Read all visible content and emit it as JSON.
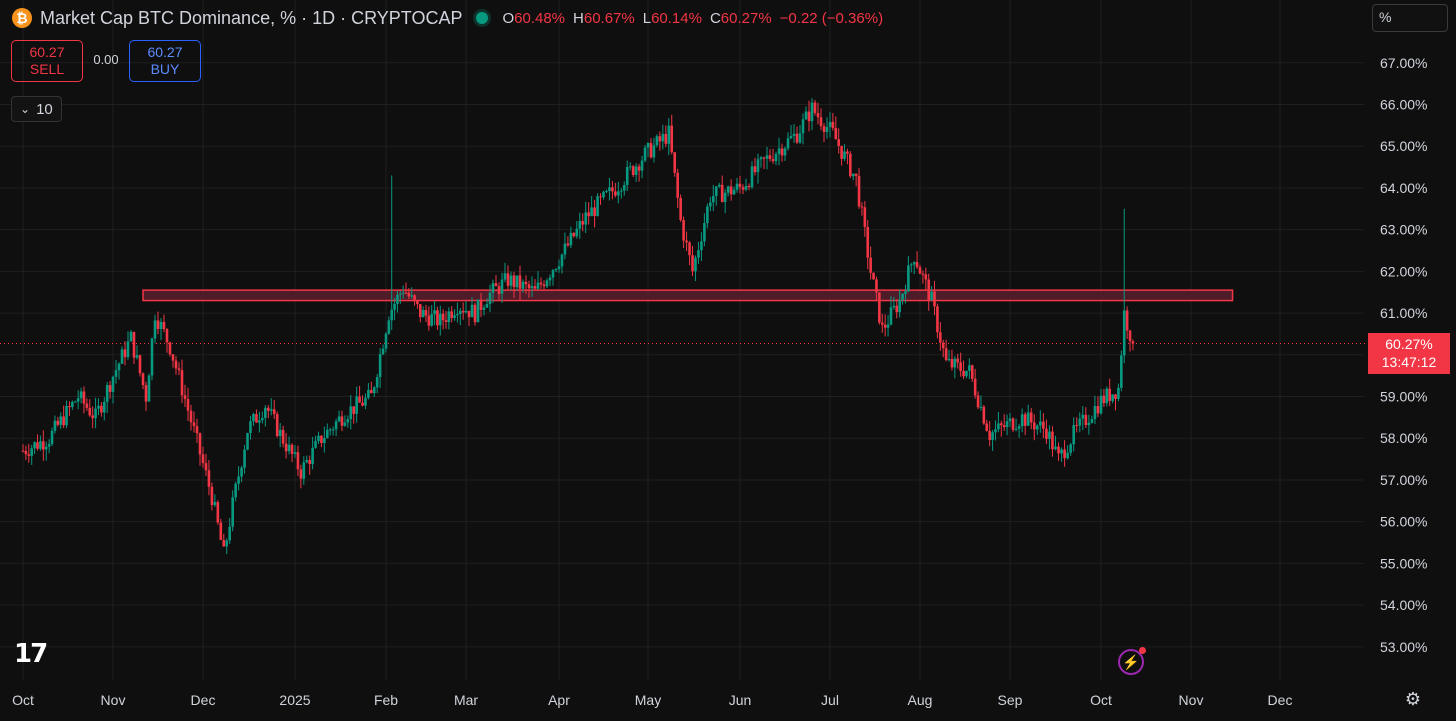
{
  "legend": {
    "coin_symbol": "₿",
    "title": "Market Cap BTC Dominance, % · 1D · CRYPTOCAP",
    "ohlc": [
      {
        "k": "O",
        "v": "60.48%"
      },
      {
        "k": "H",
        "v": "60.67%"
      },
      {
        "k": "L",
        "v": "60.14%"
      },
      {
        "k": "C",
        "v": "60.27%"
      },
      {
        "k": "",
        "v": "−0.22 (−0.36%)"
      }
    ]
  },
  "trade": {
    "sell_price": "60.27",
    "sell_label": "SELL",
    "spread": "0.00",
    "buy_price": "60.27",
    "buy_label": "BUY"
  },
  "indicators": {
    "collapse_icon": "chevron-down-icon",
    "count": "10"
  },
  "scale": {
    "unit": "%"
  },
  "last_price": {
    "value": "60.27%",
    "countdown": "13:47:12"
  },
  "colors": {
    "up": "#089981",
    "down": "#f23645",
    "zone_fill": "#5e1e2f",
    "zone_border": "#f23645"
  },
  "chart_data": {
    "type": "candlestick",
    "title": "Market Cap BTC Dominance, % · 1D · CRYPTOCAP",
    "timeframe": "1D",
    "ylim": [
      52.5,
      67.5
    ],
    "y_ticks": [
      "67.00%",
      "66.00%",
      "65.00%",
      "64.00%",
      "63.00%",
      "62.00%",
      "61.00%",
      "59.00%",
      "58.00%",
      "57.00%",
      "56.00%",
      "55.00%",
      "54.00%",
      "53.00%"
    ],
    "x_ticks": [
      "Oct",
      "Nov",
      "Dec",
      "2025",
      "Feb",
      "Mar",
      "Apr",
      "May",
      "Jun",
      "Jul",
      "Aug",
      "Sep",
      "Oct",
      "Nov",
      "Dec"
    ],
    "grid": true,
    "resistance_zone": {
      "low": 61.3,
      "high": 61.55,
      "from": "2024-11-11",
      "to": "2025-11-15"
    },
    "last_close": 60.27,
    "close_path": [
      [
        "2024-10-01",
        57.7
      ],
      [
        "2024-10-10",
        58.0
      ],
      [
        "2024-10-20",
        59.0
      ],
      [
        "2024-10-26",
        58.5
      ],
      [
        "2024-11-01",
        59.5
      ],
      [
        "2024-11-07",
        60.4
      ],
      [
        "2024-11-12",
        59.0
      ],
      [
        "2024-11-15",
        61.0
      ],
      [
        "2024-11-20",
        60.2
      ],
      [
        "2024-11-24",
        59.2
      ],
      [
        "2024-11-29",
        57.9
      ],
      [
        "2024-12-04",
        56.6
      ],
      [
        "2024-12-08",
        55.2
      ],
      [
        "2024-12-11",
        56.4
      ],
      [
        "2024-12-16",
        58.2
      ],
      [
        "2024-12-22",
        58.8
      ],
      [
        "2024-12-27",
        58.1
      ],
      [
        "2025-01-03",
        57.2
      ],
      [
        "2025-01-10",
        58.0
      ],
      [
        "2025-01-18",
        58.6
      ],
      [
        "2025-01-27",
        59.0
      ],
      [
        "2025-02-02",
        61.0
      ],
      [
        "2025-02-07",
        61.6
      ],
      [
        "2025-02-13",
        61.0
      ],
      [
        "2025-02-20",
        60.8
      ],
      [
        "2025-02-26",
        61.2
      ],
      [
        "2025-03-04",
        61.0
      ],
      [
        "2025-03-08",
        61.4
      ],
      [
        "2025-03-15",
        61.8
      ],
      [
        "2025-03-24",
        61.5
      ],
      [
        "2025-04-02",
        62.4
      ],
      [
        "2025-04-10",
        63.3
      ],
      [
        "2025-04-20",
        64.0
      ],
      [
        "2025-04-30",
        64.8
      ],
      [
        "2025-05-08",
        65.3
      ],
      [
        "2025-05-12",
        63.2
      ],
      [
        "2025-05-16",
        62.0
      ],
      [
        "2025-05-22",
        63.8
      ],
      [
        "2025-06-01",
        64.0
      ],
      [
        "2025-06-10",
        64.7
      ],
      [
        "2025-06-20",
        65.3
      ],
      [
        "2025-06-25",
        65.9
      ],
      [
        "2025-07-02",
        65.3
      ],
      [
        "2025-07-10",
        64.2
      ],
      [
        "2025-07-15",
        62.0
      ],
      [
        "2025-07-19",
        60.6
      ],
      [
        "2025-07-25",
        61.3
      ],
      [
        "2025-07-30",
        62.4
      ],
      [
        "2025-08-05",
        61.3
      ],
      [
        "2025-08-10",
        59.8
      ],
      [
        "2025-08-18",
        59.6
      ],
      [
        "2025-08-25",
        58.1
      ],
      [
        "2025-09-05",
        58.5
      ],
      [
        "2025-09-13",
        58.2
      ],
      [
        "2025-09-17",
        57.5
      ],
      [
        "2025-09-22",
        58.1
      ],
      [
        "2025-10-01",
        58.9
      ],
      [
        "2025-10-07",
        59.2
      ],
      [
        "2025-10-09",
        61.0
      ],
      [
        "2025-10-12",
        60.27
      ]
    ],
    "spike_candles": [
      {
        "date": "2025-02-03",
        "high": 64.3
      },
      {
        "date": "2025-10-09",
        "high": 63.5
      }
    ]
  }
}
